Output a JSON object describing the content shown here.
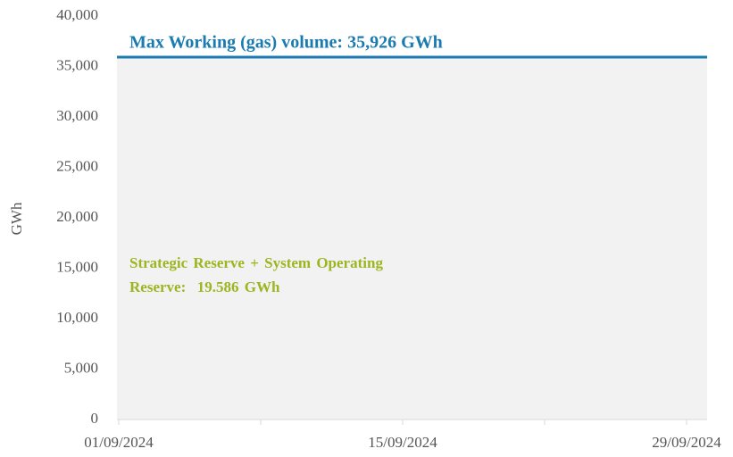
{
  "chart_data": {
    "type": "reference",
    "y_label": "GWh",
    "categories": [
      "01/09/2024",
      null,
      "15/09/2024",
      null,
      "29/09/2024"
    ],
    "ylim": [
      0,
      40000
    ],
    "yticks": [
      0,
      {
        "value": 5000,
        "label": "5,000"
      },
      {
        "value": 10000,
        "label": "10,000"
      },
      {
        "value": 15000,
        "label": "15,000"
      },
      {
        "value": 20000,
        "label": "20,000"
      },
      {
        "value": 25000,
        "label": "25,000"
      },
      {
        "value": 30000,
        "label": "30,000"
      },
      {
        "value": 35000,
        "label": "35,000"
      },
      {
        "value": 40000,
        "label": "40,000"
      }
    ],
    "reference_line": {
      "value": 35926,
      "label": "Max Working (gas) volume: 35,926 GWh",
      "color": "#1b7bb0",
      "fill": "#f2f2f2"
    },
    "annotation": {
      "lines": [
        "Strategic Reserve + System Operating",
        "Reserve:  19.586 GWh"
      ],
      "color": "#9cb520"
    }
  }
}
